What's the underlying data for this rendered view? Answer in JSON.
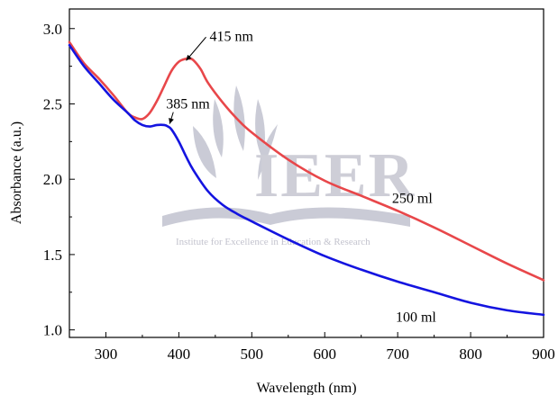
{
  "chart_data": {
    "type": "line",
    "xlabel": "Wavelength (nm)",
    "ylabel": "Absorbance (a.u.)",
    "xlim": [
      250,
      900
    ],
    "ylim": [
      0.95,
      3.13
    ],
    "x_ticks": [
      300,
      400,
      500,
      600,
      700,
      800,
      900
    ],
    "y_ticks": [
      1.0,
      1.5,
      2.0,
      2.5,
      3.0
    ],
    "grid": false,
    "series": [
      {
        "name": "250 ml",
        "color": "#e8474a",
        "x": [
          250,
          270,
          290,
          310,
          330,
          340,
          350,
          360,
          370,
          380,
          390,
          400,
          410,
          415,
          420,
          430,
          440,
          460,
          480,
          500,
          550,
          600,
          650,
          700,
          750,
          800,
          850,
          900
        ],
        "y": [
          2.91,
          2.77,
          2.67,
          2.56,
          2.44,
          2.41,
          2.4,
          2.44,
          2.52,
          2.62,
          2.72,
          2.78,
          2.8,
          2.8,
          2.79,
          2.73,
          2.64,
          2.51,
          2.4,
          2.31,
          2.13,
          1.99,
          1.89,
          1.79,
          1.68,
          1.56,
          1.44,
          1.33
        ]
      },
      {
        "name": "100 ml",
        "color": "#1414e0",
        "x": [
          250,
          270,
          290,
          310,
          330,
          340,
          350,
          360,
          370,
          380,
          385,
          390,
          400,
          410,
          420,
          440,
          460,
          480,
          500,
          550,
          600,
          650,
          700,
          750,
          800,
          850,
          900
        ],
        "y": [
          2.89,
          2.75,
          2.64,
          2.53,
          2.44,
          2.39,
          2.36,
          2.35,
          2.36,
          2.36,
          2.35,
          2.33,
          2.25,
          2.15,
          2.06,
          1.92,
          1.83,
          1.77,
          1.72,
          1.6,
          1.49,
          1.4,
          1.32,
          1.25,
          1.18,
          1.13,
          1.1
        ]
      }
    ],
    "annotations": [
      {
        "text": "415 nm",
        "x": 415,
        "y": 2.8
      },
      {
        "text": "385 nm",
        "x": 385,
        "y": 2.35
      }
    ]
  },
  "watermark": {
    "logo_text": "IEER",
    "tagline": "Institute for Excellence in Education & Research"
  }
}
